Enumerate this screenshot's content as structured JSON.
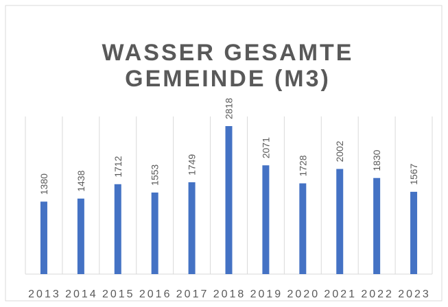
{
  "chart_data": {
    "type": "bar",
    "title_lines": [
      "WASSER GESAMTE",
      "GEMEINDE (M3)"
    ],
    "categories": [
      "2013",
      "2014",
      "2015",
      "2016",
      "2017",
      "2018",
      "2019",
      "2020",
      "2021",
      "2022",
      "2023"
    ],
    "values": [
      1380,
      1438,
      1712,
      1553,
      1749,
      2818,
      2071,
      1728,
      2002,
      1830,
      1567
    ],
    "color": "#4472c4",
    "grid": true
  }
}
